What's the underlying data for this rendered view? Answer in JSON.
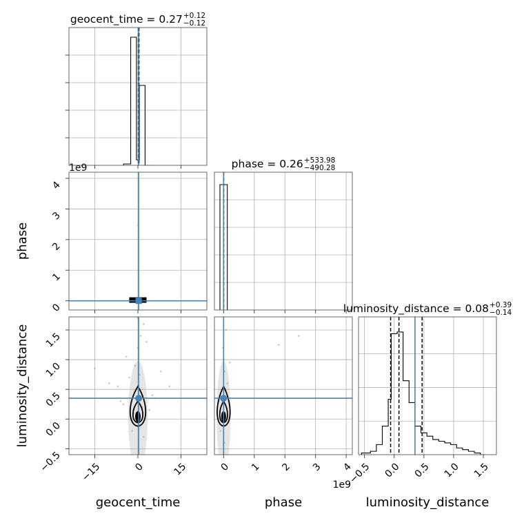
{
  "colors": {
    "truth": "#4682b4",
    "hist": "#000000",
    "grid": "#b0b0b0",
    "scatter": "#888888",
    "quantile": "#000000"
  },
  "chart_data": {
    "type": "corner",
    "parameters": [
      "geocent_time",
      "phase",
      "luminosity_distance"
    ],
    "axis_labels": {
      "geocent_time": "geocent_time",
      "phase": "phase",
      "luminosity_distance": "luminosity_distance"
    },
    "titles": {
      "geocent_time": {
        "main": "geocent_time = 0.27",
        "sup": "+0.12",
        "sub": "−0.12"
      },
      "phase": {
        "main": "phase = 0.26",
        "sup": "+533.98",
        "sub": "−490.28"
      },
      "luminosity_distance": {
        "main": "luminosity_distance = 0.08",
        "sup": "+0.39",
        "sub": "−0.14"
      }
    },
    "truths": {
      "geocent_time": 0.27,
      "phase": 0.26,
      "luminosity_distance": 0.35
    },
    "quantiles": {
      "geocent_time": [
        0.15,
        0.27,
        0.39
      ],
      "phase": [
        -490.02,
        0.26,
        534.24
      ],
      "luminosity_distance": [
        -0.06,
        0.08,
        0.47
      ]
    },
    "ranges": {
      "geocent_time": [
        -24,
        24
      ],
      "phase": [
        -300000000.0,
        4200000000.0
      ],
      "luminosity_distance": [
        -0.6,
        1.72
      ]
    },
    "offset_texts": {
      "phase_y": "1e9",
      "phase_x": "1e9"
    },
    "ticks": {
      "geocent_time": {
        "values": [
          -15,
          0,
          15
        ],
        "labels": [
          "−15",
          "0",
          "15"
        ]
      },
      "phase": {
        "values": [
          0,
          1000000000.0,
          2000000000.0,
          3000000000.0,
          4000000000.0
        ],
        "labels": [
          "0",
          "1",
          "2",
          "3",
          "4"
        ]
      },
      "luminosity_distance": {
        "values": [
          -0.5,
          0.0,
          0.5,
          1.0,
          1.5
        ],
        "labels": [
          "−0.5",
          "0.0",
          "0.5",
          "1.0",
          "1.5"
        ]
      }
    },
    "hist_geocent_time": {
      "edges": [
        -5,
        -2.5,
        -0.5,
        0.5,
        2.5,
        5
      ],
      "counts": [
        0.01,
        0.93,
        0.04,
        0.58,
        0.0
      ],
      "ylim": [
        0,
        1.0
      ],
      "yticks": [
        0.2,
        0.4,
        0.6,
        0.8
      ]
    },
    "hist_phase": {
      "edges": [
        -120000000.0,
        0,
        120000000.0
      ],
      "counts": [
        0.91,
        0.91
      ],
      "ylim": [
        0,
        1.0
      ]
    },
    "hist_luminosity_distance": {
      "edges": [
        -0.55,
        -0.4,
        -0.3,
        -0.2,
        -0.1,
        -0.05,
        0.05,
        0.15,
        0.25,
        0.35,
        0.45,
        0.55,
        0.65,
        0.75,
        0.85,
        0.95,
        1.05,
        1.15,
        1.25,
        1.35,
        1.45,
        1.55
      ],
      "counts": [
        0.01,
        0.02,
        0.06,
        0.17,
        0.33,
        0.72,
        0.73,
        0.44,
        0.31,
        0.17,
        0.13,
        0.11,
        0.09,
        0.08,
        0.07,
        0.06,
        0.04,
        0.03,
        0.02,
        0.01,
        0.0
      ],
      "ylim": [
        0,
        0.82
      ],
      "yticks": [
        0.2,
        0.4,
        0.6
      ]
    },
    "scatter_gt_ld": [
      [
        0,
        1.2
      ],
      [
        1,
        1.4
      ],
      [
        -1,
        0.9
      ],
      [
        2,
        1.6
      ],
      [
        -3,
        0.7
      ],
      [
        5,
        0.4
      ],
      [
        -7,
        0.55
      ],
      [
        8,
        0.8
      ],
      [
        -10,
        0.6
      ],
      [
        11,
        0.55
      ],
      [
        -15,
        0.85
      ],
      [
        -4,
        1.05
      ],
      [
        3,
        1.3
      ],
      [
        0.5,
        0.75
      ],
      [
        -0.5,
        0.5
      ],
      [
        1.5,
        0.2
      ],
      [
        -1.5,
        0.1
      ],
      [
        4,
        0.15
      ],
      [
        -5,
        0.25
      ],
      [
        -2,
        -0.2
      ],
      [
        2,
        -0.3
      ],
      [
        0,
        1.7
      ],
      [
        6,
        0.35
      ],
      [
        -6,
        0.3
      ]
    ],
    "scatter_ph_ld": [
      [
        30000000.0,
        0.8
      ],
      [
        -20000000.0,
        1.2
      ],
      [
        80000000.0,
        1.5
      ],
      [
        1800000000.0,
        1.25
      ],
      [
        2450000000.0,
        1.4
      ],
      [
        50000000.0,
        0.5
      ],
      [
        -50000000.0,
        0.3
      ],
      [
        0,
        1.0
      ],
      [
        120000000.0,
        0.6
      ],
      [
        -100000000.0,
        -0.2
      ],
      [
        20000000.0,
        -0.4
      ],
      [
        200000000.0,
        0.95
      ]
    ],
    "scatter_gt_ph": [
      [
        0,
        2450000000.0
      ],
      [
        -1.5,
        50000000.0
      ],
      [
        1.5,
        40000000.0
      ],
      [
        2.5,
        30000000.0
      ],
      [
        -3,
        20000000.0
      ],
      [
        -2.5,
        60000000.0
      ]
    ]
  }
}
